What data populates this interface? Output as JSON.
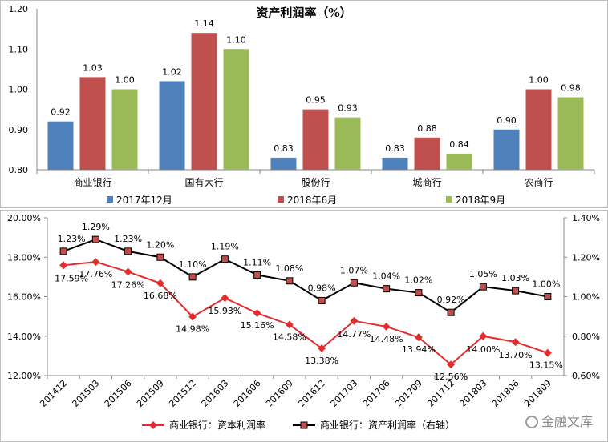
{
  "chart_data": [
    {
      "type": "bar",
      "title": "资产利润率（%）",
      "categories": [
        "商业银行",
        "国有大行",
        "股份行",
        "城商行",
        "农商行"
      ],
      "series": [
        {
          "name": "2017年12月",
          "color": "#4f81bd",
          "values": [
            0.92,
            1.02,
            0.83,
            0.83,
            0.9
          ]
        },
        {
          "name": "2018年6月",
          "color": "#c0504d",
          "values": [
            1.03,
            1.14,
            0.95,
            0.88,
            1.0
          ]
        },
        {
          "name": "2018年9月",
          "color": "#9bbb59",
          "values": [
            1.0,
            1.1,
            0.93,
            0.84,
            0.98
          ]
        }
      ],
      "value_labels": [
        [
          "0.92",
          "1.02",
          "0.83",
          "0.83",
          "0.90"
        ],
        [
          "1.03",
          "1.14",
          "0.95",
          "0.88",
          "1.00"
        ],
        [
          "1.00",
          "1.10",
          "0.93",
          "0.84",
          "0.98"
        ]
      ],
      "ylim": [
        0.8,
        1.2
      ],
      "yticks": [
        "0.80",
        "0.90",
        "1.00",
        "1.10",
        "1.20"
      ],
      "legend_position": "bottom"
    },
    {
      "type": "line",
      "categories": [
        "201412",
        "201503",
        "201506",
        "201509",
        "201512",
        "201603",
        "201606",
        "201609",
        "201612",
        "201703",
        "201706",
        "201709",
        "201712",
        "201803",
        "201806",
        "201809"
      ],
      "series": [
        {
          "name": "商业银行：资本利润率",
          "axis": "left",
          "color": "#e32c2c",
          "values": [
            17.59,
            17.76,
            17.26,
            16.68,
            14.98,
            15.93,
            15.16,
            14.58,
            13.38,
            14.77,
            14.48,
            13.94,
            12.56,
            14.0,
            13.7,
            13.15
          ],
          "labels": [
            "17.59%",
            "17.76%",
            "17.26%",
            "16.68%",
            "14.98%",
            "15.93%",
            "15.16%",
            "14.58%",
            "13.38%",
            "14.77%",
            "14.48%",
            "13.94%",
            "12.56%",
            "14.00%",
            "13.70%",
            "13.15%"
          ]
        },
        {
          "name": "商业银行：资产利润率（右轴）",
          "axis": "right",
          "color": "#000000",
          "values": [
            1.23,
            1.29,
            1.23,
            1.2,
            1.1,
            1.19,
            1.11,
            1.08,
            0.98,
            1.07,
            1.04,
            1.02,
            0.92,
            1.05,
            1.03,
            1.0
          ],
          "labels": [
            "1.23%",
            "1.29%",
            "1.23%",
            "1.20%",
            "1.10%",
            "1.19%",
            "1.11%",
            "1.08%",
            "0.98%",
            "1.07%",
            "1.04%",
            "1.02%",
            "0.92%",
            "1.05%",
            "1.03%",
            "1.00%"
          ]
        }
      ],
      "ylim_left": [
        12,
        20
      ],
      "yticks_left": [
        "12.00%",
        "14.00%",
        "16.00%",
        "18.00%",
        "20.00%"
      ],
      "ylim_right": [
        0.6,
        1.4
      ],
      "yticks_right": [
        "0.60%",
        "0.80%",
        "1.00%",
        "1.20%",
        "1.40%"
      ],
      "legend_position": "bottom"
    }
  ],
  "watermark": "金融文库"
}
